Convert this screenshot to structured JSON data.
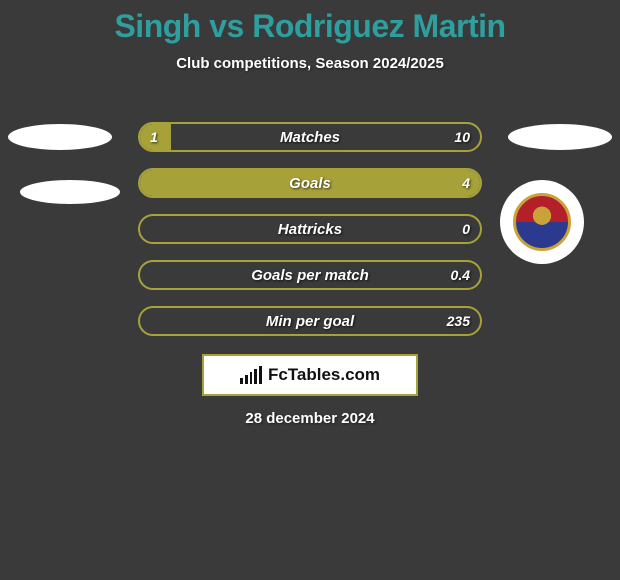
{
  "title": "Singh vs Rodriguez Martin",
  "subtitle": "Club competitions, Season 2024/2025",
  "date": "28 december 2024",
  "logo_text": "FcTables.com",
  "colors": {
    "background": "#3a3a3a",
    "accent": "#a7a13a",
    "title": "#2e9e9e",
    "text": "#ffffff",
    "logo_bg": "#ffffff"
  },
  "bars": [
    {
      "label": "Matches",
      "left": "1",
      "right": "10",
      "fill_left_pct": 9,
      "fill_right_pct": 0
    },
    {
      "label": "Goals",
      "left": "",
      "right": "4",
      "fill_left_pct": 100,
      "fill_right_pct": 0
    },
    {
      "label": "Hattricks",
      "left": "",
      "right": "0",
      "fill_left_pct": 0,
      "fill_right_pct": 0
    },
    {
      "label": "Goals per match",
      "left": "",
      "right": "0.4",
      "fill_left_pct": 0,
      "fill_right_pct": 0
    },
    {
      "label": "Min per goal",
      "left": "",
      "right": "235",
      "fill_left_pct": 0,
      "fill_right_pct": 0
    }
  ]
}
